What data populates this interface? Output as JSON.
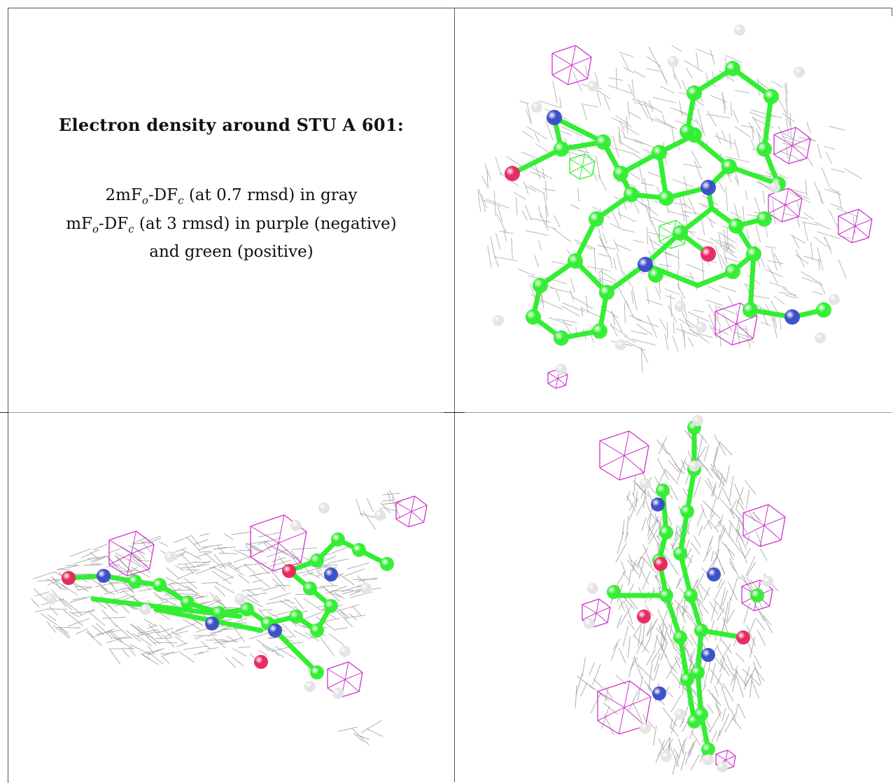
{
  "caption": {
    "title": "Electron density around STU A 601:",
    "map1_prefix": "2mF",
    "map1_suffix": " (at 0.7 rmsd) in gray",
    "map2_prefix": "mF",
    "map2_suffix": " (at 3 rmsd) in purple (negative)",
    "map2_cont": "and green (positive)",
    "sub_o": "o",
    "sub_c": "c",
    "df": "-DF"
  },
  "colors": {
    "carbon": "#33ee33",
    "nitrogen": "#3a4ec8",
    "oxygen": "#e8275f",
    "hydrogen": "#e4e4e4",
    "density_gray": "#9a9a9a",
    "density_negative": "#cc33cc",
    "density_positive": "#33ee33"
  }
}
